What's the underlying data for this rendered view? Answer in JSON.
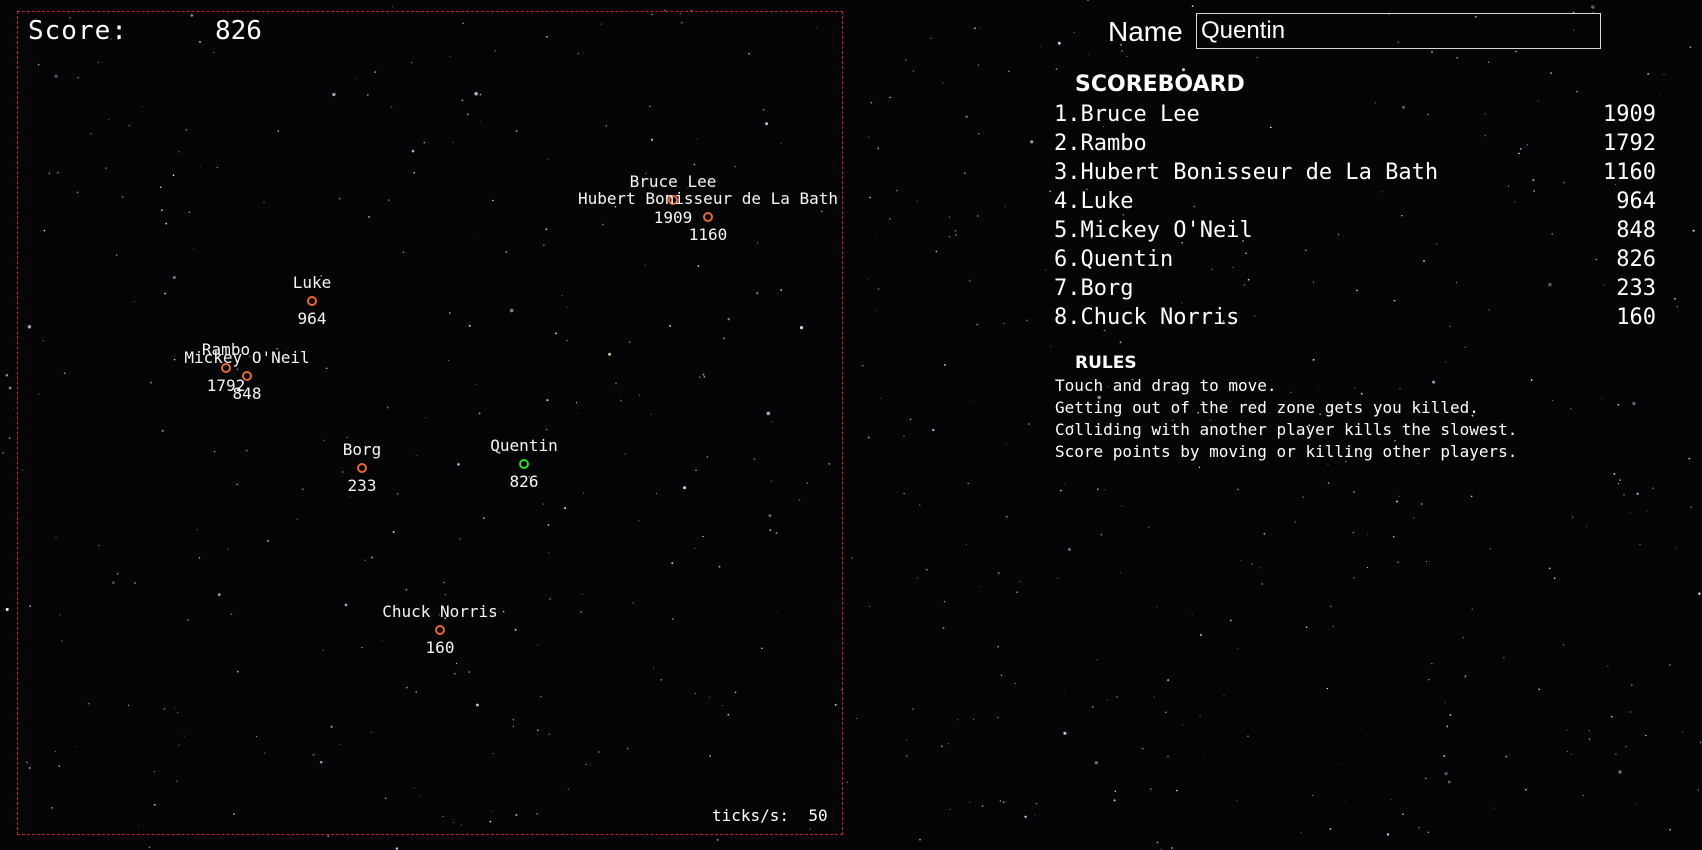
{
  "hud": {
    "score_label": "Score:",
    "score_value": "826",
    "ticks_label": "ticks/s:",
    "ticks_value": "50"
  },
  "colors": {
    "zone_border": "#cc1f1f",
    "enemy_dot": "#e8673a",
    "self_dot": "#28e028"
  },
  "players": [
    {
      "name": "Bruce Lee",
      "score": "1909",
      "self": false
    },
    {
      "name": "Hubert Bonisseur de La Bath",
      "score": "1160",
      "self": false
    },
    {
      "name": "Luke",
      "score": "964",
      "self": false
    },
    {
      "name": "Rambo",
      "score": "1792",
      "self": false
    },
    {
      "name": "Mickey O'Neil",
      "score": "848",
      "self": false
    },
    {
      "name": "Borg",
      "score": "233",
      "self": false
    },
    {
      "name": "Quentin",
      "score": "826",
      "self": true
    },
    {
      "name": "Chuck Norris",
      "score": "160",
      "self": false
    }
  ],
  "name_form": {
    "label": "Name",
    "value": "Quentin"
  },
  "scoreboard": {
    "title": "SCOREBOARD",
    "rows": [
      {
        "name": "1.Bruce Lee",
        "score": "1909"
      },
      {
        "name": "2.Rambo",
        "score": "1792"
      },
      {
        "name": "3.Hubert Bonisseur de La Bath",
        "score": "1160"
      },
      {
        "name": "4.Luke",
        "score": "964"
      },
      {
        "name": "5.Mickey O'Neil",
        "score": "848"
      },
      {
        "name": "6.Quentin",
        "score": "826"
      },
      {
        "name": "7.Borg",
        "score": "233"
      },
      {
        "name": "8.Chuck Norris",
        "score": "160"
      }
    ]
  },
  "rules": {
    "title": "RULES",
    "lines": [
      "Touch and drag to move.",
      "Getting out of the red zone gets you killed.",
      "Colliding with another player kills the slowest.",
      "Score points by moving or killing other players."
    ]
  }
}
